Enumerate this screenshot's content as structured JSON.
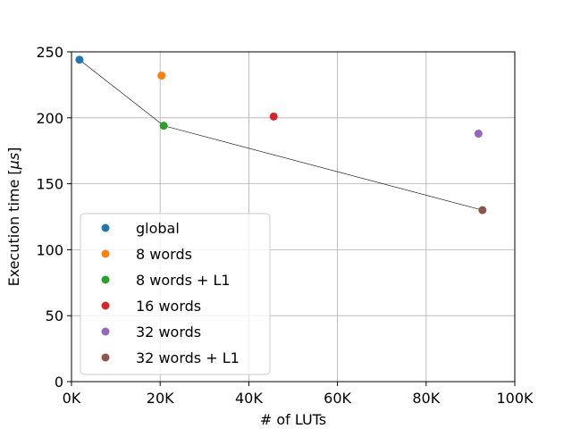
{
  "chart_data": {
    "type": "scatter",
    "xlabel": "# of LUTs",
    "ylabel_prefix": "Execution time [",
    "ylabel_unit": "μs",
    "ylabel_suffix": "]",
    "xlim": [
      0,
      100000
    ],
    "ylim": [
      0,
      250
    ],
    "xticks": [
      0,
      20000,
      40000,
      60000,
      80000,
      100000
    ],
    "xtick_labels": [
      "0K",
      "20K",
      "40K",
      "60K",
      "80K",
      "100K"
    ],
    "yticks": [
      0,
      50,
      100,
      150,
      200,
      250
    ],
    "ytick_labels": [
      "0",
      "50",
      "100",
      "150",
      "200",
      "250"
    ],
    "grid": true,
    "legend_position": "lower-left",
    "series": [
      {
        "name": "global",
        "color": "#1f77b4",
        "x": 1800,
        "y": 244
      },
      {
        "name": "8 words",
        "color": "#ff7f0e",
        "x": 20300,
        "y": 232
      },
      {
        "name": "8 words + L1",
        "color": "#2ca02c",
        "x": 20800,
        "y": 194
      },
      {
        "name": "16 words",
        "color": "#d62728",
        "x": 45600,
        "y": 201
      },
      {
        "name": "32 words",
        "color": "#9467bd",
        "x": 91800,
        "y": 188
      },
      {
        "name": "32 words + L1",
        "color": "#8c564b",
        "x": 92700,
        "y": 130
      }
    ],
    "pareto_line": {
      "color": "#000000",
      "points": [
        [
          1800,
          244
        ],
        [
          20800,
          194
        ],
        [
          92700,
          130
        ]
      ]
    }
  }
}
